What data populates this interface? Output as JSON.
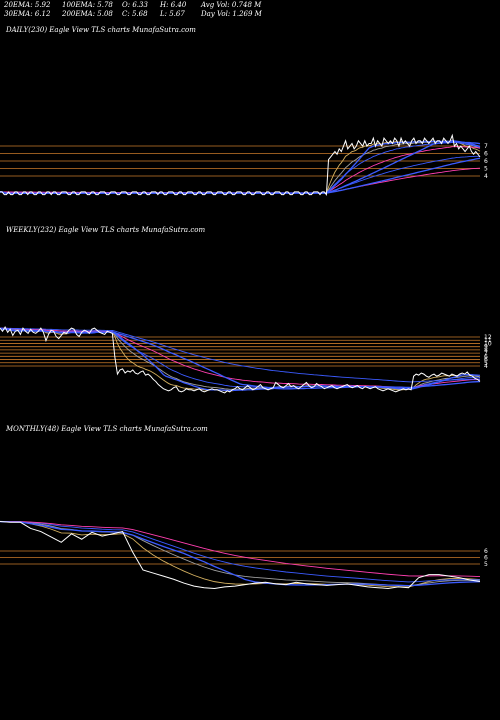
{
  "header": {
    "ema20": "20EMA: 5.92",
    "ema100": "100EMA: 5.78",
    "open": "O: 6.33",
    "high": "H: 6.40",
    "avgvol": "Avg Vol: 0.748 M",
    "ema30": "30EMA: 6.12",
    "ema200": "200EMA: 5.08",
    "close": "C: 5.68",
    "low": "L: 5.67",
    "dayvol": "Day Vol: 1.269 M"
  },
  "colors": {
    "background": "#000000",
    "price": "#ffffff",
    "ema_blue": "#3b5bff",
    "ema_pink": "#ff3fb0",
    "ema_gold": "#d4b060",
    "ema_gray": "#a0a0a0",
    "ma_lines": "#c87a2a"
  },
  "chart_data": [
    {
      "type": "line",
      "title": "DAILY(230) Eagle   View  TLS charts MunafaSutra.com",
      "yticks": [
        "7",
        "6",
        "6",
        "5",
        "4"
      ],
      "series": [
        {
          "values": [
            4.4,
            4.4,
            4.3,
            4.3,
            4.4,
            4.3,
            4.3,
            4.4,
            4.4,
            4.3,
            4.3,
            4.4,
            4.4,
            4.3,
            4.4,
            4.4,
            4.3,
            4.3,
            4.4,
            4.4,
            4.3,
            4.3,
            4.4,
            4.4,
            4.3,
            4.4,
            4.4,
            4.3,
            4.3,
            4.4,
            4.4,
            4.4,
            4.3,
            4.3,
            4.4,
            4.4,
            4.3,
            4.3,
            4.4,
            4.4,
            4.4,
            4.3,
            4.3,
            4.4,
            4.4,
            4.3,
            4.3,
            4.4,
            4.4,
            4.4,
            4.3,
            4.3,
            4.4,
            4.4,
            4.4,
            4.3,
            4.3,
            4.4,
            4.4,
            4.4,
            4.3,
            4.3,
            4.4,
            4.4,
            4.4,
            4.3,
            4.3,
            4.4,
            4.4,
            4.3,
            4.3,
            4.4,
            4.4,
            4.4,
            4.3,
            4.4,
            4.4,
            4.3,
            4.3,
            4.4,
            4.4,
            4.4,
            4.3,
            4.3,
            4.4,
            4.4,
            4.3,
            4.3,
            4.4,
            4.4,
            4.4,
            4.3,
            4.3,
            4.4,
            4.4,
            4.3,
            4.3,
            4.4,
            4.4,
            4.4,
            4.3,
            4.3,
            4.4,
            4.4,
            4.4,
            4.3,
            4.3,
            4.4,
            4.4,
            4.3,
            4.3,
            4.4,
            4.4,
            4.4,
            4.3,
            4.3,
            4.4,
            4.4,
            4.3,
            4.3,
            4.4,
            4.4,
            4.4,
            4.3,
            4.3,
            4.4,
            4.4,
            4.3,
            4.3,
            4.4,
            4.4,
            4.4,
            4.3,
            4.3,
            4.4,
            4.4,
            4.3,
            4.3,
            4.4,
            4.4,
            4.4,
            4.3,
            4.3,
            4.4,
            4.4,
            4.3,
            4.3,
            4.4,
            4.4,
            4.4,
            4.3,
            4.4,
            4.4,
            4.3,
            5.6,
            5.7,
            5.8,
            5.9,
            5.8,
            6.0,
            5.9,
            6.1,
            6.3,
            6.0,
            6.1,
            6.2,
            6.0,
            6.1,
            6.3,
            6.2,
            6.1,
            6.3,
            6.1,
            6.2,
            6.2,
            6.4,
            6.1,
            6.3,
            6.2,
            6.1,
            6.4,
            6.3,
            6.2,
            6.3,
            6.2,
            6.4,
            6.3,
            6.1,
            6.4,
            6.2,
            6.3,
            6.2,
            6.1,
            6.3,
            6.4,
            6.2,
            6.3,
            6.3,
            6.2,
            6.4,
            6.3,
            6.2,
            6.3,
            6.4,
            6.2,
            6.3,
            6.3,
            6.2,
            6.4,
            6.3,
            6.2,
            6.3,
            6.5,
            6.1,
            6.2,
            6.0,
            6.1,
            6.0,
            5.9,
            6.0,
            6.1,
            5.9,
            5.8,
            5.9,
            5.8,
            5.7
          ]
        }
      ]
    },
    {
      "type": "line",
      "title": "WEEKLY(232) Eagle   View  TLS charts MunafaSutra.com",
      "yticks": [
        "12",
        "11",
        "10",
        "9",
        "8",
        "7",
        "6",
        "6",
        "5",
        "4"
      ],
      "series": [
        {
          "values": [
            10.8,
            10.5,
            10.9,
            10.4,
            10.7,
            10.1,
            10.5,
            10.6,
            10.2,
            10.8,
            10.5,
            10.3,
            10.7,
            10.4,
            10.3,
            10.5,
            10.8,
            10.4,
            9.6,
            10.2,
            10.6,
            10.5,
            10.0,
            9.8,
            10.1,
            10.4,
            10.3,
            10.6,
            10.8,
            10.7,
            10.2,
            10.0,
            10.4,
            10.6,
            10.5,
            10.3,
            10.7,
            10.8,
            10.6,
            10.4,
            10.3,
            10.2,
            10.5,
            10.4,
            10.3,
            8.0,
            6.4,
            6.8,
            6.9,
            6.5,
            6.7,
            6.6,
            6.8,
            6.5,
            6.4,
            6.6,
            6.7,
            6.3,
            6.4,
            6.2,
            5.9,
            5.7,
            5.4,
            5.2,
            5.0,
            4.9,
            4.8,
            4.9,
            5.1,
            5.2,
            4.8,
            4.7,
            4.8,
            5.0,
            4.9,
            4.9,
            4.8,
            4.9,
            5.0,
            4.8,
            4.7,
            4.8,
            4.9,
            5.0,
            4.9,
            4.9,
            4.8,
            4.7,
            4.6,
            4.8,
            4.7,
            4.9,
            5.0,
            5.2,
            5.0,
            4.9,
            5.1,
            5.3,
            5.1,
            4.9,
            5.0,
            5.2,
            5.4,
            5.1,
            5.0,
            4.9,
            5.0,
            5.1,
            5.6,
            5.4,
            5.2,
            5.1,
            5.3,
            5.5,
            5.2,
            5.3,
            5.1,
            5.0,
            5.2,
            5.4,
            5.6,
            5.3,
            5.1,
            5.2,
            5.5,
            5.3,
            5.2,
            5.0,
            5.1,
            5.2,
            5.3,
            5.1,
            5.0,
            5.1,
            5.2,
            5.3,
            5.4,
            5.2,
            5.1,
            5.2,
            5.3,
            5.1,
            5.0,
            5.2,
            5.1,
            5.0,
            5.1,
            5.2,
            5.0,
            4.9,
            4.8,
            4.9,
            5.0,
            4.9,
            4.8,
            4.7,
            4.8,
            4.9,
            5.0,
            4.9,
            5.0,
            4.9,
            6.2,
            6.4,
            6.3,
            6.5,
            6.4,
            6.2,
            6.1,
            6.3,
            6.4,
            6.2,
            6.3,
            6.5,
            6.4,
            6.3,
            6.2,
            6.4,
            6.3,
            6.2,
            6.4,
            6.5,
            6.4,
            6.6,
            6.3,
            6.2,
            6.0,
            5.9,
            5.7
          ]
        }
      ]
    },
    {
      "type": "line",
      "title": "MONTHLY(48) Eagle   View  TLS charts MunafaSutra.com",
      "yticks": [
        "6",
        "6",
        "5"
      ],
      "series": [
        {
          "values": [
            13.5,
            13.4,
            13.4,
            12.6,
            12.2,
            11.5,
            10.8,
            11.9,
            11.2,
            12.1,
            11.6,
            11.9,
            12.2,
            9.5,
            7.2,
            6.8,
            6.4,
            6.0,
            5.5,
            5.1,
            4.9,
            4.8,
            5.0,
            5.1,
            5.3,
            5.5,
            5.6,
            5.4,
            5.3,
            5.6,
            5.4,
            5.3,
            5.2,
            5.3,
            5.4,
            5.2,
            5.0,
            4.9,
            4.8,
            5.0,
            4.9,
            6.2,
            6.6,
            6.6,
            6.4,
            6.2,
            5.9,
            5.7
          ]
        }
      ]
    }
  ]
}
